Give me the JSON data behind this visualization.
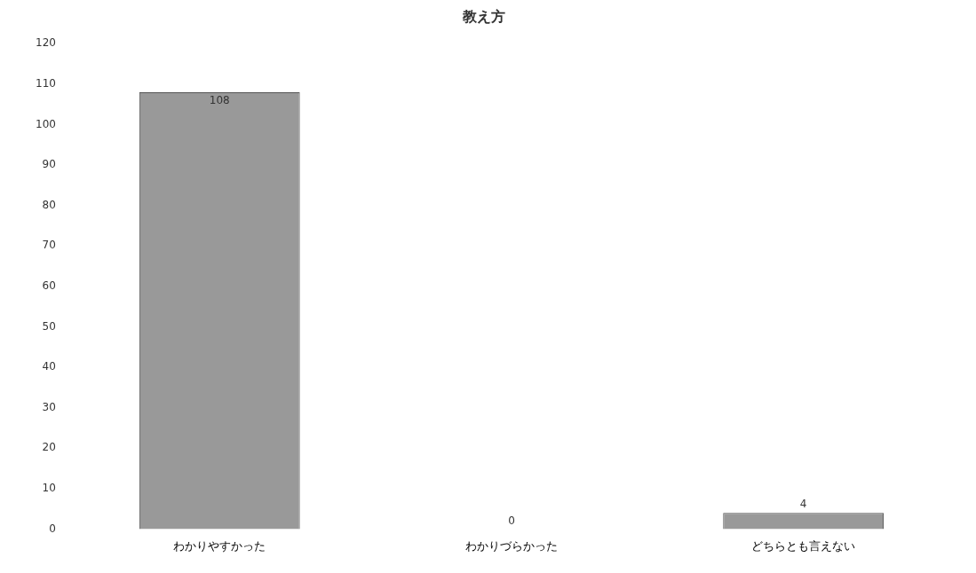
{
  "chart_data": {
    "type": "bar",
    "title": "教え方",
    "categories": [
      "わかりやすかった",
      "わかりづらかった",
      "どちらとも言えない"
    ],
    "values": [
      108,
      0,
      4
    ],
    "color": "#999999",
    "ylim": [
      0,
      120
    ],
    "yticks": [
      0,
      10,
      20,
      30,
      40,
      50,
      60,
      70,
      80,
      90,
      100,
      110,
      120
    ],
    "grid": false,
    "data_labels": true
  }
}
